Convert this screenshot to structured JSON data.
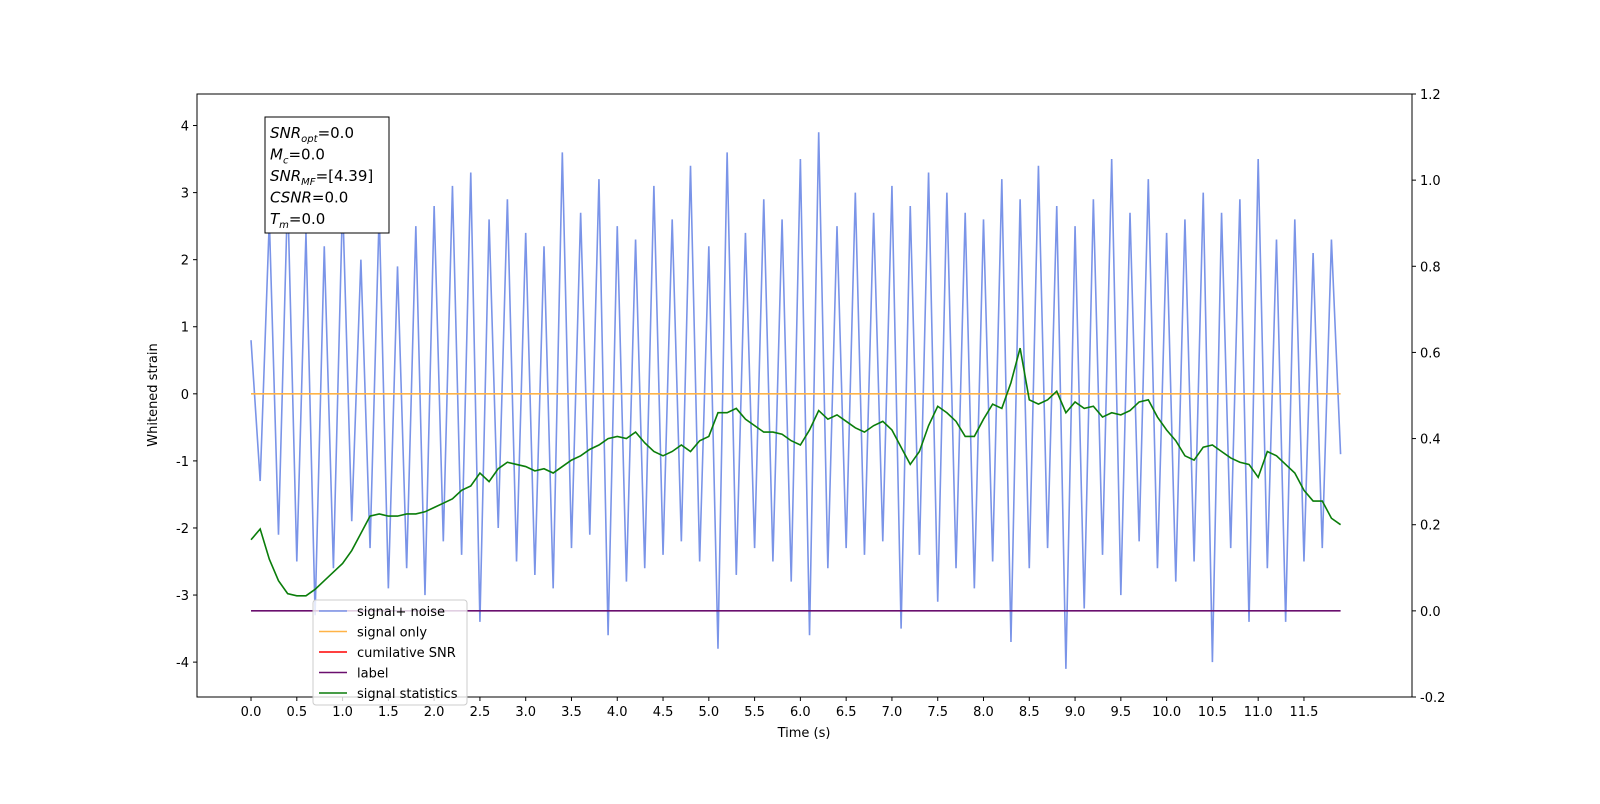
{
  "chart_data": {
    "type": "line",
    "x_label": "Time (s)",
    "y_label": "Whitened strain",
    "x": [
      0.0,
      0.1,
      0.2,
      0.3,
      0.4,
      0.5,
      0.6,
      0.7,
      0.8,
      0.9,
      1.0,
      1.1,
      1.2,
      1.3,
      1.4,
      1.5,
      1.6,
      1.7,
      1.8,
      1.9,
      2.0,
      2.1,
      2.2,
      2.3,
      2.4,
      2.5,
      2.6,
      2.7,
      2.8,
      2.9,
      3.0,
      3.1,
      3.2,
      3.3,
      3.4,
      3.5,
      3.6,
      3.7,
      3.8,
      3.9,
      4.0,
      4.1,
      4.2,
      4.3,
      4.4,
      4.5,
      4.6,
      4.7,
      4.8,
      4.9,
      5.0,
      5.1,
      5.2,
      5.3,
      5.4,
      5.5,
      5.6,
      5.7,
      5.8,
      5.9,
      6.0,
      6.1,
      6.2,
      6.3,
      6.4,
      6.5,
      6.6,
      6.7,
      6.8,
      6.9,
      7.0,
      7.1,
      7.2,
      7.3,
      7.4,
      7.5,
      7.6,
      7.7,
      7.8,
      7.9,
      8.0,
      8.1,
      8.2,
      8.3,
      8.4,
      8.5,
      8.6,
      8.7,
      8.8,
      8.9,
      9.0,
      9.1,
      9.2,
      9.3,
      9.4,
      9.5,
      9.6,
      9.7,
      9.8,
      9.9,
      10.0,
      10.1,
      10.2,
      10.3,
      10.4,
      10.5,
      10.6,
      10.7,
      10.8,
      10.9,
      11.0,
      11.1,
      11.2,
      11.3,
      11.4,
      11.5,
      11.6,
      11.7,
      11.8,
      11.9
    ],
    "series": [
      {
        "name": "signal+ noise",
        "color": "#7a94e8",
        "values": [
          0.8,
          -1.3,
          2.6,
          -2.1,
          3.0,
          -2.5,
          2.4,
          -3.3,
          2.2,
          -2.6,
          2.9,
          -1.9,
          2.0,
          -2.3,
          2.7,
          -2.9,
          1.9,
          -2.6,
          2.5,
          -3.0,
          2.8,
          -2.2,
          3.1,
          -2.4,
          3.3,
          -3.4,
          2.6,
          -2.0,
          2.9,
          -2.5,
          2.4,
          -2.7,
          2.2,
          -2.9,
          3.6,
          -2.3,
          2.7,
          -2.1,
          3.2,
          -3.6,
          2.5,
          -2.8,
          2.3,
          -2.6,
          3.1,
          -2.4,
          2.6,
          -2.2,
          3.4,
          -2.5,
          2.2,
          -3.8,
          3.6,
          -2.7,
          2.4,
          -2.3,
          2.9,
          -2.5,
          2.6,
          -2.8,
          3.5,
          -3.6,
          3.9,
          -2.6,
          2.5,
          -2.3,
          3.0,
          -2.4,
          2.7,
          -2.2,
          3.1,
          -3.5,
          2.8,
          -2.4,
          3.3,
          -3.1,
          3.0,
          -2.6,
          2.7,
          -2.9,
          2.6,
          -2.5,
          3.2,
          -3.7,
          2.9,
          -2.6,
          3.4,
          -2.3,
          2.8,
          -4.1,
          2.5,
          -3.2,
          2.9,
          -2.4,
          3.5,
          -3.0,
          2.7,
          -2.2,
          3.2,
          -2.6,
          2.4,
          -2.8,
          2.6,
          -2.5,
          3.0,
          -4.0,
          2.7,
          -2.3,
          2.9,
          -3.4,
          3.5,
          -2.6,
          2.3,
          -3.4,
          2.6,
          -2.5,
          2.1,
          -2.3,
          2.3,
          -0.9
        ]
      },
      {
        "name": "signal only",
        "color": "#ffb347",
        "values": [
          0,
          0,
          0,
          0,
          0,
          0,
          0,
          0,
          0,
          0,
          0,
          0,
          0,
          0,
          0,
          0,
          0,
          0,
          0,
          0,
          0,
          0,
          0,
          0,
          0,
          0,
          0,
          0,
          0,
          0,
          0,
          0,
          0,
          0,
          0,
          0,
          0,
          0,
          0,
          0,
          0,
          0,
          0,
          0,
          0,
          0,
          0,
          0,
          0,
          0,
          0,
          0,
          0,
          0,
          0,
          0,
          0,
          0,
          0,
          0,
          0,
          0,
          0,
          0,
          0,
          0,
          0,
          0,
          0,
          0,
          0,
          0,
          0,
          0,
          0,
          0,
          0,
          0,
          0,
          0,
          0,
          0,
          0,
          0,
          0,
          0,
          0,
          0,
          0,
          0,
          0,
          0,
          0,
          0,
          0,
          0,
          0,
          0,
          0,
          0,
          0,
          0,
          0,
          0,
          0,
          0,
          0,
          0,
          0,
          0,
          0,
          0,
          0,
          0,
          0,
          0,
          0,
          0,
          0,
          0
        ]
      },
      {
        "name": "cumilative SNR",
        "color": "#ff0000",
        "values": [
          null,
          null,
          null,
          null,
          null,
          null,
          null,
          null,
          null,
          null,
          null,
          null,
          null,
          null,
          null,
          null,
          null,
          null,
          null,
          null,
          null,
          null,
          null,
          null,
          null,
          null,
          null,
          null,
          null,
          null,
          null,
          null,
          null,
          null,
          null,
          null,
          null,
          null,
          null,
          null,
          null,
          null,
          null,
          null,
          null,
          null,
          null,
          null,
          null,
          null,
          null,
          null,
          null,
          null,
          null,
          null,
          null,
          null,
          null,
          null,
          null,
          null,
          null,
          null,
          null,
          null,
          null,
          null,
          null,
          null,
          null,
          null,
          null,
          null,
          null,
          null,
          null,
          null,
          null,
          null,
          null,
          null,
          null,
          null,
          null,
          null,
          null,
          null,
          null,
          null,
          null,
          null,
          null,
          null,
          null,
          null,
          null,
          null,
          null,
          null,
          null,
          null,
          null,
          null,
          null,
          null,
          null,
          null,
          null,
          null,
          null,
          null,
          null,
          null,
          null,
          null,
          null,
          null,
          null,
          null
        ]
      },
      {
        "name": "label",
        "color": "#6a0f6e",
        "axis": "y2",
        "values": [
          0,
          0,
          0,
          0,
          0,
          0,
          0,
          0,
          0,
          0,
          0,
          0,
          0,
          0,
          0,
          0,
          0,
          0,
          0,
          0,
          0,
          0,
          0,
          0,
          0,
          0,
          0,
          0,
          0,
          0,
          0,
          0,
          0,
          0,
          0,
          0,
          0,
          0,
          0,
          0,
          0,
          0,
          0,
          0,
          0,
          0,
          0,
          0,
          0,
          0,
          0,
          0,
          0,
          0,
          0,
          0,
          0,
          0,
          0,
          0,
          0,
          0,
          0,
          0,
          0,
          0,
          0,
          0,
          0,
          0,
          0,
          0,
          0,
          0,
          0,
          0,
          0,
          0,
          0,
          0,
          0,
          0,
          0,
          0,
          0,
          0,
          0,
          0,
          0,
          0,
          0,
          0,
          0,
          0,
          0,
          0,
          0,
          0,
          0,
          0,
          0,
          0,
          0,
          0,
          0,
          0,
          0,
          0,
          0,
          0,
          0,
          0,
          0,
          0,
          0,
          0,
          0,
          0,
          0,
          0
        ]
      },
      {
        "name": "signal statistics",
        "color": "#0a7d0a",
        "axis": "y2",
        "values": [
          0.165,
          0.19,
          0.12,
          0.07,
          0.04,
          0.035,
          0.035,
          0.05,
          0.07,
          0.09,
          0.11,
          0.14,
          0.18,
          0.22,
          0.225,
          0.22,
          0.22,
          0.225,
          0.225,
          0.23,
          0.24,
          0.25,
          0.26,
          0.28,
          0.29,
          0.32,
          0.3,
          0.33,
          0.345,
          0.34,
          0.335,
          0.325,
          0.33,
          0.32,
          0.335,
          0.35,
          0.36,
          0.375,
          0.385,
          0.4,
          0.405,
          0.4,
          0.415,
          0.39,
          0.37,
          0.36,
          0.37,
          0.385,
          0.37,
          0.395,
          0.405,
          0.46,
          0.46,
          0.47,
          0.445,
          0.43,
          0.415,
          0.415,
          0.41,
          0.395,
          0.385,
          0.42,
          0.465,
          0.445,
          0.455,
          0.44,
          0.425,
          0.415,
          0.43,
          0.44,
          0.42,
          0.38,
          0.34,
          0.37,
          0.43,
          0.475,
          0.46,
          0.44,
          0.405,
          0.405,
          0.445,
          0.48,
          0.47,
          0.53,
          0.61,
          0.49,
          0.48,
          0.49,
          0.51,
          0.46,
          0.485,
          0.47,
          0.475,
          0.45,
          0.46,
          0.455,
          0.465,
          0.485,
          0.49,
          0.45,
          0.42,
          0.395,
          0.36,
          0.35,
          0.38,
          0.385,
          0.37,
          0.355,
          0.345,
          0.34,
          0.31,
          0.37,
          0.36,
          0.34,
          0.32,
          0.28,
          0.255,
          0.255,
          0.215,
          0.2
        ]
      }
    ],
    "xlim": [
      -0.59,
      12.68
    ],
    "xticks": [
      {
        "value": 0,
        "label": "0.0"
      },
      0.5,
      {
        "value": 1,
        "label": "1.0"
      },
      1.5,
      {
        "value": 2,
        "label": "2.0"
      },
      2.5,
      {
        "value": 3,
        "label": "3.0"
      },
      3.5,
      {
        "value": 4,
        "label": "4.0"
      },
      4.5,
      {
        "value": 5,
        "label": "5.0"
      },
      5.5,
      {
        "value": 6,
        "label": "6.0"
      },
      6.5,
      {
        "value": 7,
        "label": "7.0"
      },
      7.5,
      {
        "value": 8,
        "label": "8.0"
      },
      8.5,
      {
        "value": 9,
        "label": "9.0"
      },
      9.5,
      {
        "value": 10,
        "label": "10.0"
      },
      10.5,
      {
        "value": 11,
        "label": "11.0"
      },
      11.5
    ],
    "ylim": [
      -4.52,
      4.47
    ],
    "yticks": [
      -4,
      -3,
      -2,
      -1,
      0,
      1,
      2,
      3,
      4
    ],
    "y2lim": [
      -0.2,
      1.2
    ],
    "y2ticks": [
      -0.2,
      {
        "value": 0,
        "label": "0.0"
      },
      0.2,
      0.4,
      0.6,
      0.8,
      {
        "value": 1,
        "label": "1.0"
      },
      1.2
    ],
    "annotations": [
      {
        "name": "SNR",
        "sub": "opt",
        "text": "=0.0"
      },
      {
        "name": "M",
        "sub": "c",
        "text": "=0.0"
      },
      {
        "name": "SNR",
        "sub": "MF",
        "text": "=[4.39]"
      },
      {
        "name": "CSNR",
        "text": "=0.0"
      },
      {
        "name": "T",
        "sub": "m",
        "text": "=0.0"
      }
    ]
  }
}
